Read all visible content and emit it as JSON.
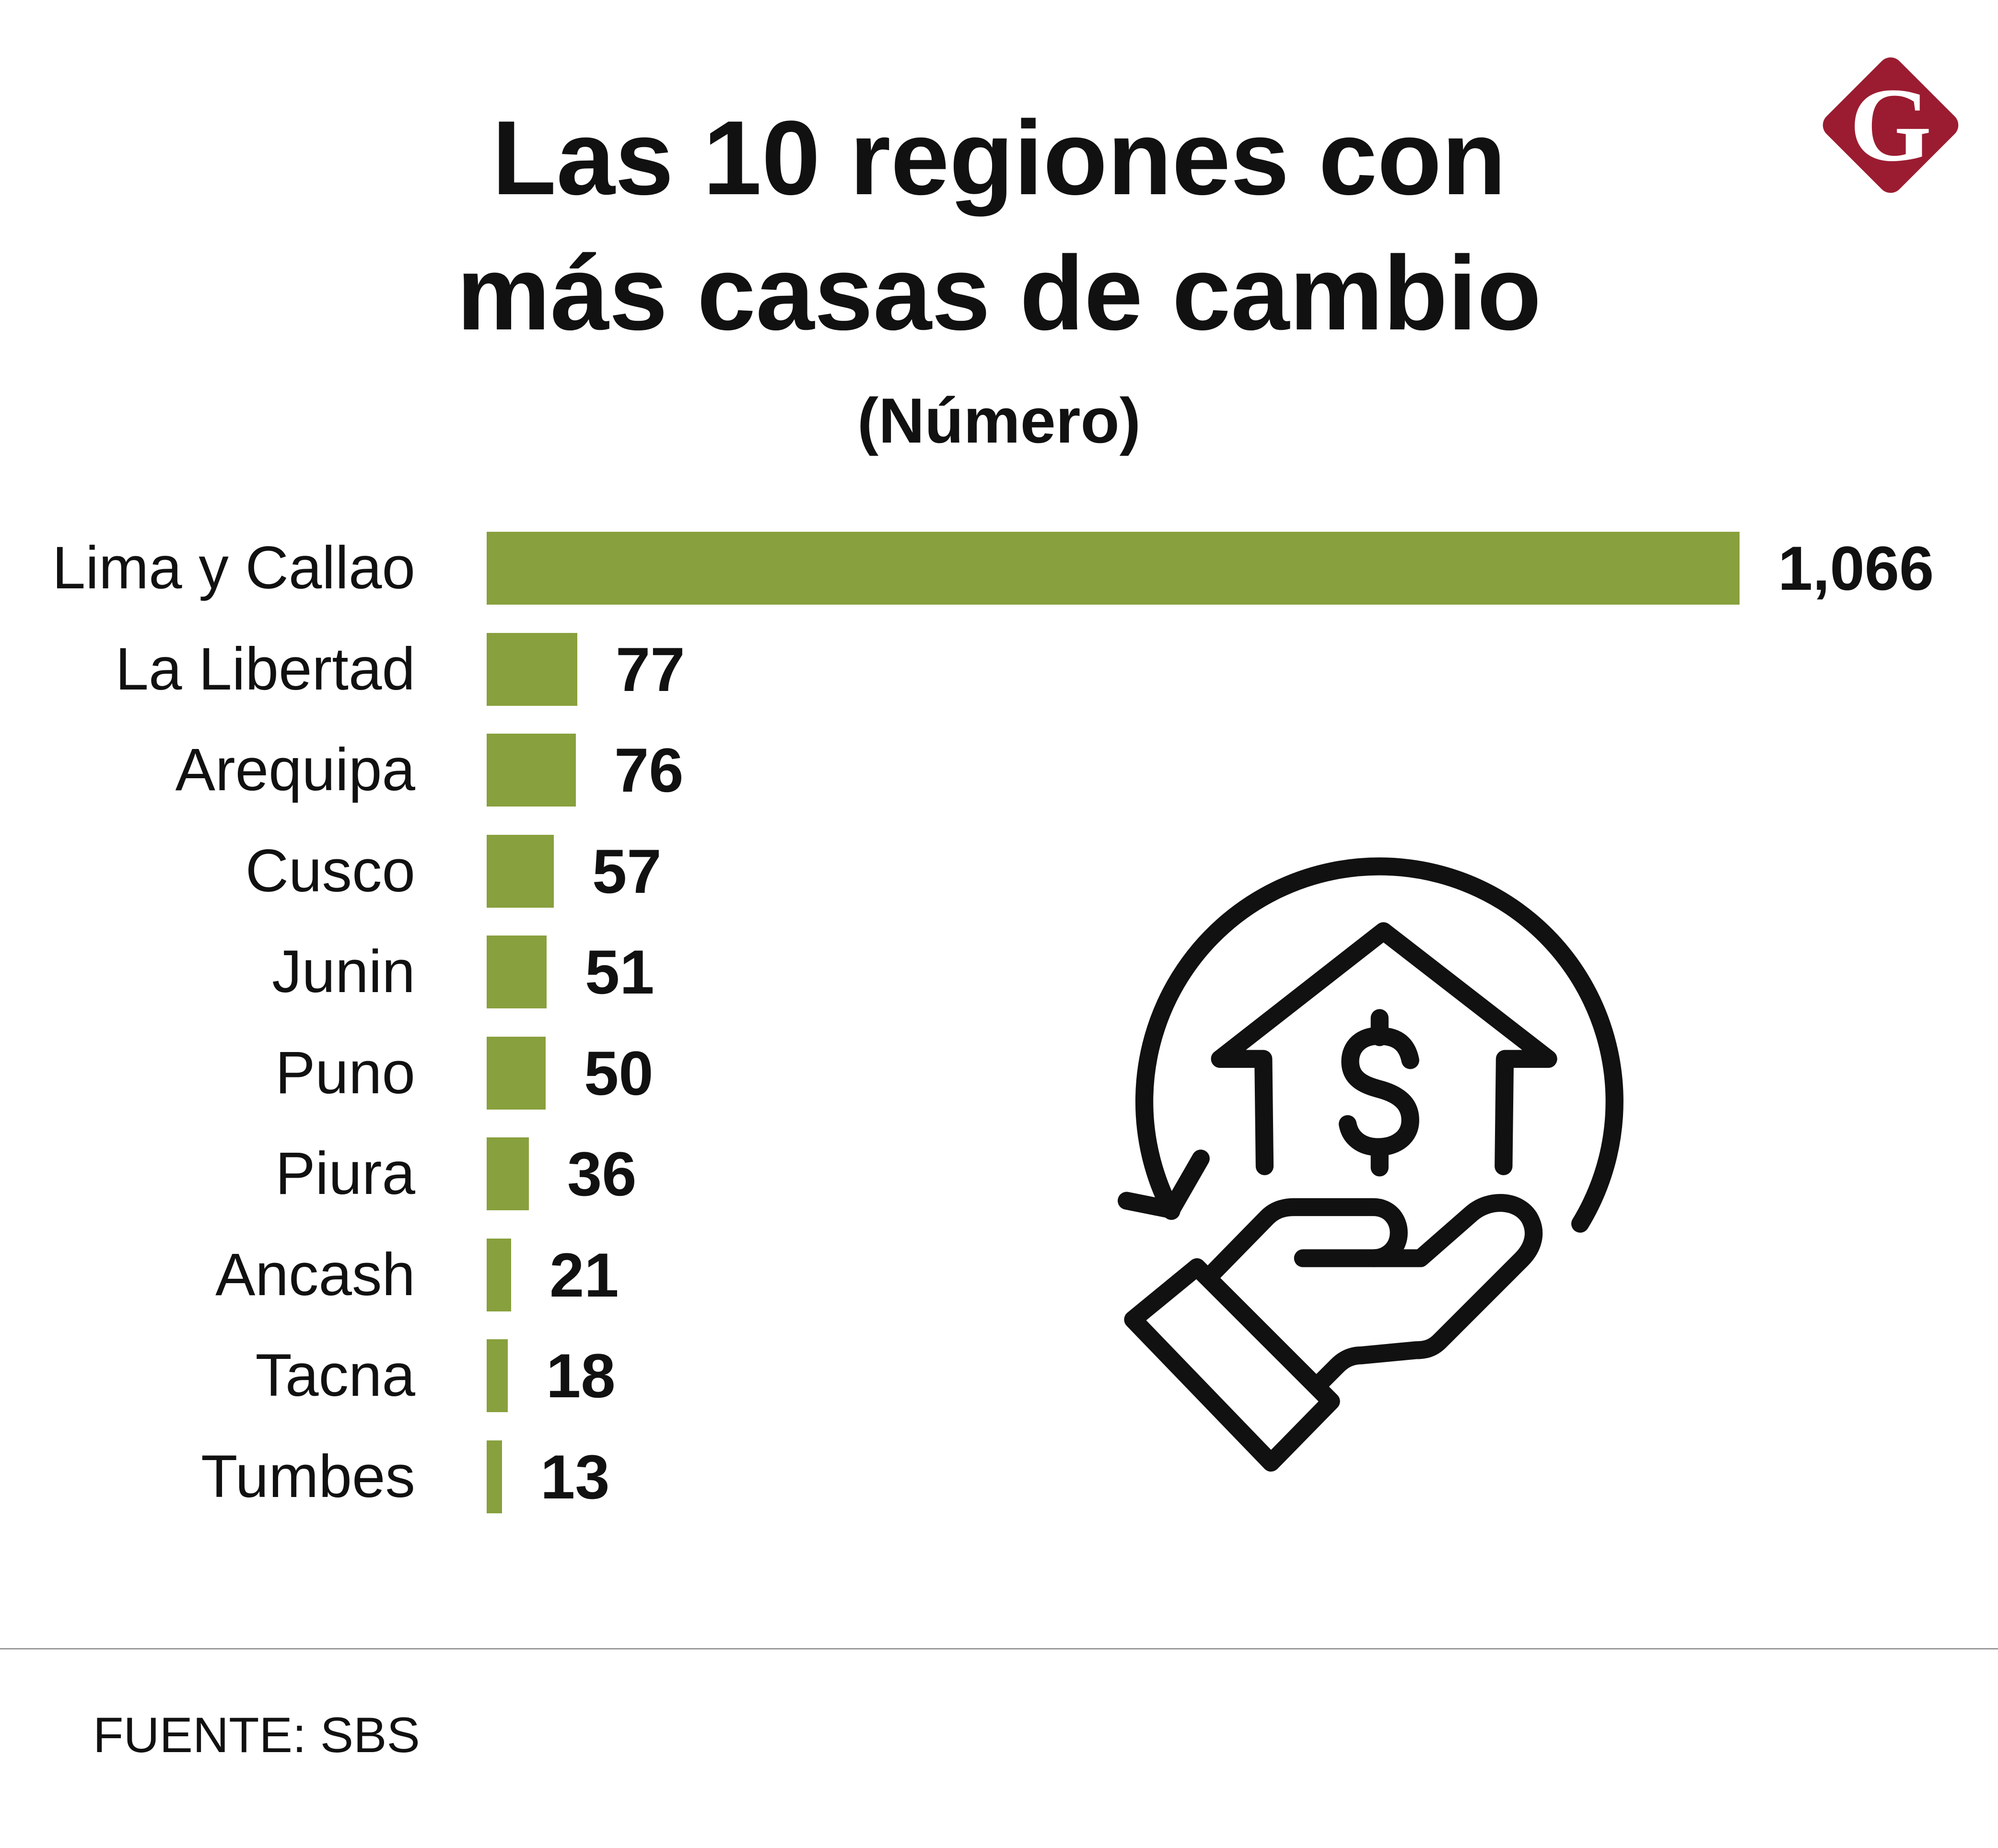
{
  "chart_data": {
    "type": "bar",
    "orientation": "horizontal",
    "title_lines": [
      "Las 10 regiones con",
      "más casas de cambio"
    ],
    "subtitle": "(Número)",
    "categories": [
      "Lima y Callao",
      "La Libertad",
      "Arequipa",
      "Cusco",
      "Junin",
      "Puno",
      "Piura",
      "Ancash",
      "Tacna",
      "Tumbes"
    ],
    "values": [
      1066,
      77,
      76,
      57,
      51,
      50,
      36,
      21,
      18,
      13
    ],
    "value_labels": [
      "1,066",
      "77",
      "76",
      "57",
      "51",
      "50",
      "36",
      "21",
      "18",
      "13"
    ],
    "xlim": [
      0,
      1066
    ],
    "grid": false,
    "bar_color": "#88a03d"
  },
  "logo": {
    "letter": "G",
    "color": "#9b1c31"
  },
  "icons": {
    "illustration": "currency-exchange-icon"
  },
  "source": "FUENTE: SBS"
}
